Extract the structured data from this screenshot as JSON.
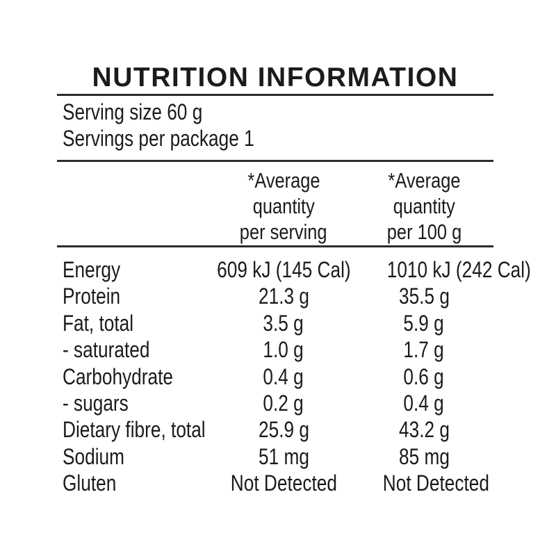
{
  "title": "NUTRITION INFORMATION",
  "serving_info": {
    "serving_size": "Serving size 60 g",
    "servings_per_package": "Servings per package 1"
  },
  "table": {
    "column_headers": [
      {
        "lines": [
          "*Average",
          "quantity",
          "per serving"
        ]
      },
      {
        "lines": [
          "*Average",
          "quantity",
          "per 100 g"
        ]
      }
    ],
    "rows": [
      {
        "nutrient": "Energy",
        "per_serving": "609 kJ (145 Cal)",
        "per_100g": "1010 kJ (242 Cal)"
      },
      {
        "nutrient": "Protein",
        "per_serving": "21.3 g",
        "per_100g": "35.5 g"
      },
      {
        "nutrient": "Fat, total",
        "per_serving": "3.5 g",
        "per_100g": "5.9 g"
      },
      {
        "nutrient": "- saturated",
        "per_serving": "1.0 g",
        "per_100g": "1.7 g"
      },
      {
        "nutrient": "Carbohydrate",
        "per_serving": "0.4 g",
        "per_100g": "0.6 g"
      },
      {
        "nutrient": "- sugars",
        "per_serving": "0.2 g",
        "per_100g": "0.4 g"
      },
      {
        "nutrient": "Dietary fibre, total",
        "per_serving": "25.9 g",
        "per_100g": "43.2 g"
      },
      {
        "nutrient": "Sodium",
        "per_serving": "51 mg",
        "per_100g": "85 mg"
      },
      {
        "nutrient": "Gluten",
        "per_serving": "Not Detected",
        "per_100g": "Not Detected"
      }
    ]
  },
  "colors": {
    "background": "#ffffff",
    "text": "#1b1b1b",
    "rule": "#2b2b2b"
  }
}
